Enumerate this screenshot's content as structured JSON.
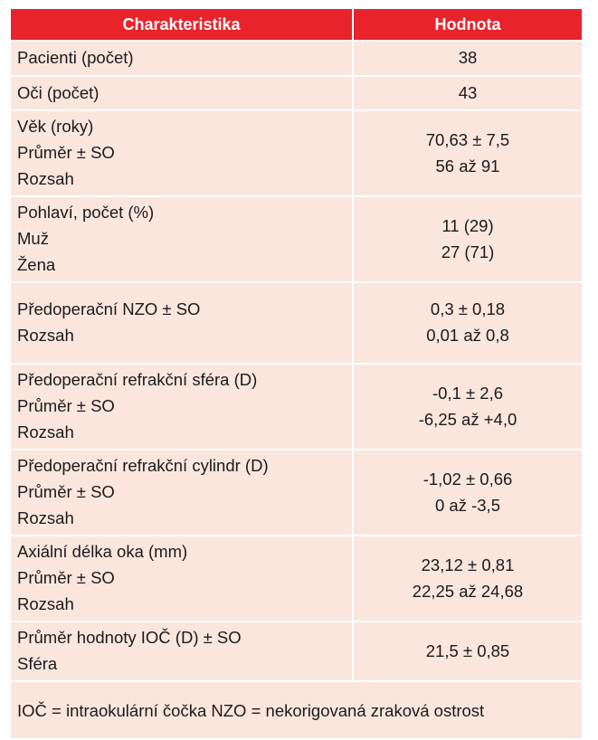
{
  "header": {
    "col1": "Charakteristika",
    "col2": "Hodnota"
  },
  "rows": [
    {
      "labels": [
        "Pacienti (počet)"
      ],
      "values": [
        "38"
      ]
    },
    {
      "labels": [
        "Oči (počet)"
      ],
      "values": [
        "43"
      ]
    },
    {
      "labels": [
        "Věk (roky)",
        "Průměr ± SO",
        "Rozsah"
      ],
      "values": [
        "70,63 ± 7,5",
        "56 až 91"
      ]
    },
    {
      "labels": [
        "Pohlaví, počet (%)",
        "Muž",
        "Žena"
      ],
      "values": [
        "11 (29)",
        "27 (71)"
      ]
    },
    {
      "labels": [
        "Předoperační NZO ± SO",
        "Rozsah"
      ],
      "values": [
        "0,3 ± 0,18",
        "0,01 až 0,8"
      ]
    },
    {
      "labels": [
        "Předoperační refrakční sféra (D)",
        "Průměr ± SO",
        "Rozsah"
      ],
      "values": [
        "-0,1 ± 2,6",
        "-6,25 až +4,0"
      ]
    },
    {
      "labels": [
        "Předoperační refrakční cylindr (D)",
        "Průměr ± SO",
        "Rozsah"
      ],
      "values": [
        "-1,02 ± 0,66",
        "0 až -3,5"
      ]
    },
    {
      "labels": [
        "Axiální délka oka (mm)",
        "Průměr ± SO",
        "Rozsah"
      ],
      "values": [
        "23,12 ± 0,81",
        "22,25 až 24,68"
      ]
    },
    {
      "labels": [
        "Průměr hodnoty IOČ (D) ± SO",
        "Sféra"
      ],
      "values": [
        "21,5 ± 0,85"
      ]
    }
  ],
  "footer": {
    "lines": [
      "IOČ = intraokulární čočka",
      "NZO = nekorigovaná zraková ostrost"
    ]
  },
  "colors": {
    "header_bg": "#e8232b",
    "cell_bg": "#fbe6de"
  }
}
